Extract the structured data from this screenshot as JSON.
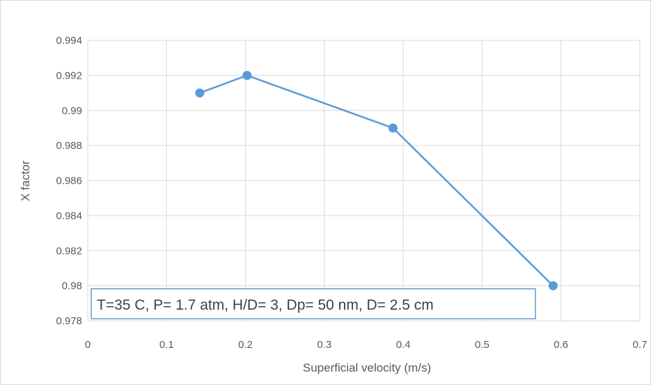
{
  "chart_data": {
    "type": "scatter",
    "title": "",
    "xlabel": "Superficial velocity (m/s)",
    "ylabel": "X factor",
    "xlim": [
      0,
      0.7
    ],
    "ylim": [
      0.978,
      0.994
    ],
    "x_ticks": [
      "0",
      "0.1",
      "0.2",
      "0.3",
      "0.4",
      "0.5",
      "0.6",
      "0.7"
    ],
    "y_ticks": [
      "0.978",
      "0.98",
      "0.982",
      "0.984",
      "0.986",
      "0.988",
      "0.99",
      "0.992",
      "0.994"
    ],
    "grid": true,
    "lines_connected": true,
    "series": [
      {
        "color": "#5b9bd5",
        "x": [
          0.142,
          0.202,
          0.387,
          0.59
        ],
        "y": [
          0.991,
          0.992,
          0.989,
          0.98
        ]
      }
    ],
    "annotation": "T=35 C, P= 1.7 atm, H/D= 3, Dp= 50 nm, D= 2.5 cm",
    "colors": {
      "series": "#5b9bd5",
      "grid": "#d9d9d9",
      "text": "#595959",
      "annotation_border": "#5b9bd5"
    }
  }
}
